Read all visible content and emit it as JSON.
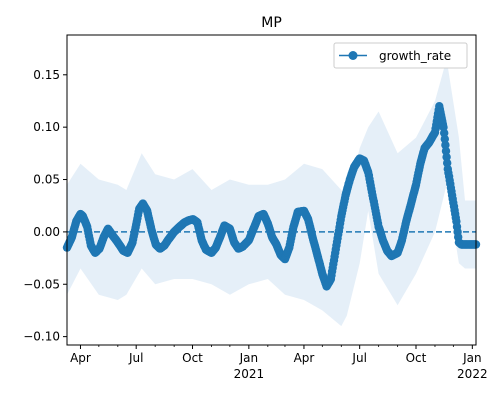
{
  "chart_data": {
    "type": "line",
    "title": "MP",
    "xlabel": "",
    "ylabel": "",
    "legend": {
      "placement": "top-right",
      "entries": [
        "growth_rate"
      ]
    },
    "grid": false,
    "xlim": [
      "2020-03-10",
      "2022-01-07"
    ],
    "ylim": [
      -0.108,
      0.188
    ],
    "colors": {
      "series": "#1f77b4",
      "band": "#dce9f5",
      "zero_line": "#1f77b4"
    },
    "x_ticks": [
      {
        "date": "2020-04-01",
        "label": "Apr",
        "sub": ""
      },
      {
        "date": "2020-07-01",
        "label": "Jul",
        "sub": ""
      },
      {
        "date": "2020-10-01",
        "label": "Oct",
        "sub": ""
      },
      {
        "date": "2021-01-01",
        "label": "Jan",
        "sub": "2021"
      },
      {
        "date": "2021-04-01",
        "label": "Apr",
        "sub": ""
      },
      {
        "date": "2021-07-01",
        "label": "Jul",
        "sub": ""
      },
      {
        "date": "2021-10-01",
        "label": "Oct",
        "sub": ""
      },
      {
        "date": "2022-01-01",
        "label": "Jan",
        "sub": "2022"
      }
    ],
    "y_ticks": [
      {
        "value": -0.1,
        "label": "−0.10"
      },
      {
        "value": -0.05,
        "label": "−0.05"
      },
      {
        "value": 0.0,
        "label": "0.00"
      },
      {
        "value": 0.05,
        "label": "0.05"
      },
      {
        "value": 0.1,
        "label": "0.10"
      },
      {
        "value": 0.15,
        "label": "0.15"
      }
    ],
    "reference_line": {
      "y": 0.0,
      "style": "dashed"
    },
    "series": [
      {
        "name": "growth_rate",
        "x": [
          "2020-03-10",
          "2020-03-18",
          "2020-03-25",
          "2020-04-01",
          "2020-04-05",
          "2020-04-12",
          "2020-04-18",
          "2020-04-25",
          "2020-05-02",
          "2020-05-09",
          "2020-05-16",
          "2020-05-23",
          "2020-06-01",
          "2020-06-10",
          "2020-06-17",
          "2020-06-25",
          "2020-07-02",
          "2020-07-06",
          "2020-07-12",
          "2020-07-19",
          "2020-07-26",
          "2020-08-02",
          "2020-08-09",
          "2020-08-16",
          "2020-08-23",
          "2020-09-01",
          "2020-09-10",
          "2020-09-18",
          "2020-09-25",
          "2020-10-02",
          "2020-10-09",
          "2020-10-16",
          "2020-10-23",
          "2020-11-01",
          "2020-11-08",
          "2020-11-15",
          "2020-11-22",
          "2020-12-01",
          "2020-12-08",
          "2020-12-15",
          "2020-12-22",
          "2021-01-01",
          "2021-01-10",
          "2021-01-17",
          "2021-01-25",
          "2021-02-01",
          "2021-02-08",
          "2021-02-15",
          "2021-02-22",
          "2021-03-01",
          "2021-03-08",
          "2021-03-15",
          "2021-03-22",
          "2021-04-01",
          "2021-04-08",
          "2021-04-15",
          "2021-04-22",
          "2021-05-01",
          "2021-05-08",
          "2021-05-15",
          "2021-05-22",
          "2021-06-01",
          "2021-06-08",
          "2021-06-15",
          "2021-06-22",
          "2021-07-01",
          "2021-07-08",
          "2021-07-15",
          "2021-07-22",
          "2021-08-01",
          "2021-08-08",
          "2021-08-15",
          "2021-08-22",
          "2021-09-01",
          "2021-09-08",
          "2021-09-15",
          "2021-09-22",
          "2021-10-01",
          "2021-10-08",
          "2021-10-15",
          "2021-10-22",
          "2021-11-01",
          "2021-11-08",
          "2021-11-15",
          "2021-11-22",
          "2021-11-29",
          "2021-12-06",
          "2021-12-10",
          "2021-12-14",
          "2021-12-20",
          "2021-12-27",
          "2022-01-07"
        ],
        "values": [
          -0.015,
          -0.005,
          0.01,
          0.017,
          0.015,
          0.005,
          -0.013,
          -0.02,
          -0.016,
          -0.005,
          0.003,
          -0.003,
          -0.01,
          -0.018,
          -0.02,
          -0.01,
          0.01,
          0.022,
          0.027,
          0.02,
          0.002,
          -0.012,
          -0.016,
          -0.013,
          -0.007,
          0.0,
          0.005,
          0.009,
          0.011,
          0.012,
          0.009,
          -0.008,
          -0.017,
          -0.02,
          -0.015,
          -0.005,
          0.006,
          0.003,
          -0.01,
          -0.016,
          -0.014,
          -0.008,
          0.005,
          0.015,
          0.017,
          0.008,
          -0.005,
          -0.012,
          -0.022,
          -0.026,
          -0.015,
          0.005,
          0.019,
          0.02,
          0.012,
          -0.005,
          -0.02,
          -0.04,
          -0.052,
          -0.045,
          -0.02,
          0.015,
          0.035,
          0.05,
          0.062,
          0.07,
          0.068,
          0.057,
          0.035,
          0.005,
          -0.008,
          -0.018,
          -0.023,
          -0.02,
          -0.008,
          0.01,
          0.025,
          0.045,
          0.065,
          0.08,
          0.085,
          0.095,
          0.12,
          0.1,
          0.06,
          0.035,
          0.01,
          -0.01,
          -0.012,
          -0.012,
          -0.012,
          -0.012
        ]
      }
    ],
    "confidence_band": {
      "x": [
        "2020-03-10",
        "2020-04-01",
        "2020-05-01",
        "2020-06-01",
        "2020-06-15",
        "2020-07-10",
        "2020-08-01",
        "2020-09-01",
        "2020-10-01",
        "2020-11-01",
        "2020-12-01",
        "2021-01-01",
        "2021-02-01",
        "2021-03-01",
        "2021-04-01",
        "2021-05-01",
        "2021-06-01",
        "2021-06-10",
        "2021-07-01",
        "2021-07-15",
        "2021-08-01",
        "2021-09-01",
        "2021-10-01",
        "2021-11-01",
        "2021-11-20",
        "2021-12-10",
        "2021-12-20",
        "2022-01-07"
      ],
      "upper": [
        0.045,
        0.065,
        0.05,
        0.045,
        0.04,
        0.075,
        0.055,
        0.05,
        0.06,
        0.04,
        0.05,
        0.045,
        0.045,
        0.05,
        0.065,
        0.06,
        0.04,
        0.03,
        0.08,
        0.1,
        0.115,
        0.075,
        0.09,
        0.125,
        0.165,
        0.09,
        0.03,
        0.03
      ],
      "lower": [
        -0.06,
        -0.035,
        -0.06,
        -0.065,
        -0.06,
        -0.035,
        -0.05,
        -0.045,
        -0.045,
        -0.05,
        -0.06,
        -0.05,
        -0.045,
        -0.06,
        -0.065,
        -0.075,
        -0.09,
        -0.08,
        -0.03,
        0.02,
        -0.04,
        -0.07,
        -0.04,
        0.0,
        0.045,
        -0.03,
        -0.035,
        -0.035
      ]
    }
  }
}
